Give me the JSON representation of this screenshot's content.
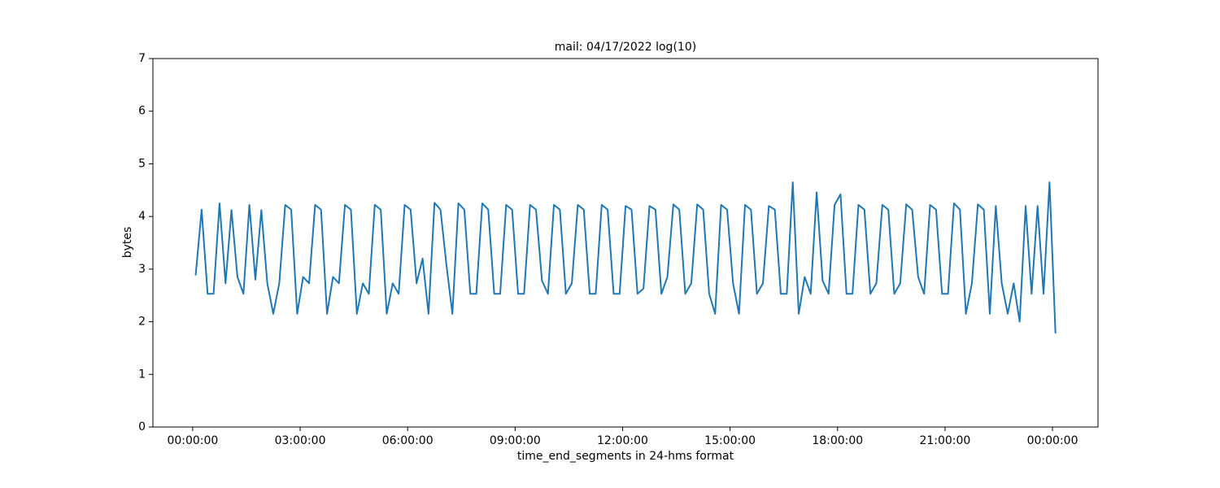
{
  "chart_data": {
    "type": "line",
    "title": "mail: 04/17/2022 log(10)",
    "xlabel": "time_end_segments in 24-hms format",
    "ylabel": "bytes",
    "x": [
      0.083,
      0.25,
      0.417,
      0.583,
      0.75,
      0.917,
      1.083,
      1.25,
      1.417,
      1.583,
      1.75,
      1.917,
      2.083,
      2.25,
      2.417,
      2.583,
      2.75,
      2.917,
      3.083,
      3.25,
      3.417,
      3.583,
      3.75,
      3.917,
      4.083,
      4.25,
      4.417,
      4.583,
      4.75,
      4.917,
      5.083,
      5.25,
      5.417,
      5.583,
      5.75,
      5.917,
      6.083,
      6.25,
      6.417,
      6.583,
      6.75,
      6.917,
      7.083,
      7.25,
      7.417,
      7.583,
      7.75,
      7.917,
      8.083,
      8.25,
      8.417,
      8.583,
      8.75,
      8.917,
      9.083,
      9.25,
      9.417,
      9.583,
      9.75,
      9.917,
      10.083,
      10.25,
      10.417,
      10.583,
      10.75,
      10.917,
      11.083,
      11.25,
      11.417,
      11.583,
      11.75,
      11.917,
      12.083,
      12.25,
      12.417,
      12.583,
      12.75,
      12.917,
      13.083,
      13.25,
      13.417,
      13.583,
      13.75,
      13.917,
      14.083,
      14.25,
      14.417,
      14.583,
      14.75,
      14.917,
      15.083,
      15.25,
      15.417,
      15.583,
      15.75,
      15.917,
      16.083,
      16.25,
      16.417,
      16.583,
      16.75,
      16.917,
      17.083,
      17.25,
      17.417,
      17.583,
      17.75,
      17.917,
      18.083,
      18.25,
      18.417,
      18.583,
      18.75,
      18.917,
      19.083,
      19.25,
      19.417,
      19.583,
      19.75,
      19.917,
      20.083,
      20.25,
      20.417,
      20.583,
      20.75,
      20.917,
      21.083,
      21.25,
      21.417,
      21.583,
      21.75,
      21.917,
      22.083,
      22.25,
      22.417,
      22.583,
      22.75,
      22.917,
      23.083,
      23.25,
      23.417,
      23.583,
      23.75,
      23.917,
      24.083
    ],
    "series": [
      {
        "name": "mail",
        "color": "#1f77b4",
        "values": [
          2.88,
          4.13,
          2.53,
          2.53,
          4.25,
          2.73,
          4.12,
          2.85,
          2.53,
          4.22,
          2.8,
          4.12,
          2.73,
          2.15,
          2.73,
          4.22,
          4.13,
          2.15,
          2.85,
          2.73,
          4.22,
          4.13,
          2.15,
          2.85,
          2.73,
          4.22,
          4.13,
          2.15,
          2.73,
          2.53,
          4.22,
          4.13,
          2.15,
          2.73,
          2.53,
          4.22,
          4.13,
          2.73,
          3.2,
          2.15,
          4.26,
          4.13,
          3.08,
          2.15,
          4.25,
          4.13,
          2.53,
          2.53,
          4.25,
          4.13,
          2.53,
          2.53,
          4.22,
          4.13,
          2.53,
          2.53,
          4.22,
          4.13,
          2.78,
          2.53,
          4.22,
          4.13,
          2.53,
          2.73,
          4.22,
          4.13,
          2.53,
          2.53,
          4.22,
          4.13,
          2.53,
          2.53,
          4.2,
          4.13,
          2.53,
          2.63,
          4.2,
          4.13,
          2.53,
          2.85,
          4.23,
          4.13,
          2.53,
          2.73,
          4.23,
          4.13,
          2.53,
          2.15,
          4.22,
          4.13,
          2.73,
          2.15,
          4.22,
          4.13,
          2.53,
          2.73,
          4.2,
          4.13,
          2.53,
          2.53,
          4.65,
          2.15,
          2.85,
          2.53,
          4.46,
          2.78,
          2.53,
          4.22,
          4.42,
          2.53,
          2.53,
          4.22,
          4.13,
          2.53,
          2.73,
          4.22,
          4.13,
          2.53,
          2.73,
          4.23,
          4.13,
          2.85,
          2.53,
          4.22,
          4.13,
          2.53,
          2.53,
          4.25,
          4.13,
          2.15,
          2.73,
          4.23,
          4.13,
          2.15,
          4.2,
          2.73,
          2.15,
          2.73,
          2.0,
          4.2,
          2.53,
          4.2,
          2.53,
          4.65,
          1.78
        ]
      }
    ],
    "xlim": [
      -1.11,
      25.27
    ],
    "xticks": [
      {
        "value": 0,
        "label": "00:00:00"
      },
      {
        "value": 3,
        "label": "03:00:00"
      },
      {
        "value": 6,
        "label": "06:00:00"
      },
      {
        "value": 9,
        "label": "09:00:00"
      },
      {
        "value": 12,
        "label": "12:00:00"
      },
      {
        "value": 15,
        "label": "15:00:00"
      },
      {
        "value": 18,
        "label": "18:00:00"
      },
      {
        "value": 21,
        "label": "21:00:00"
      },
      {
        "value": 24,
        "label": "00:00:00"
      }
    ],
    "ylim": [
      0,
      7
    ],
    "yticks": [
      0,
      1,
      2,
      3,
      4,
      5,
      6,
      7
    ],
    "grid": false
  }
}
